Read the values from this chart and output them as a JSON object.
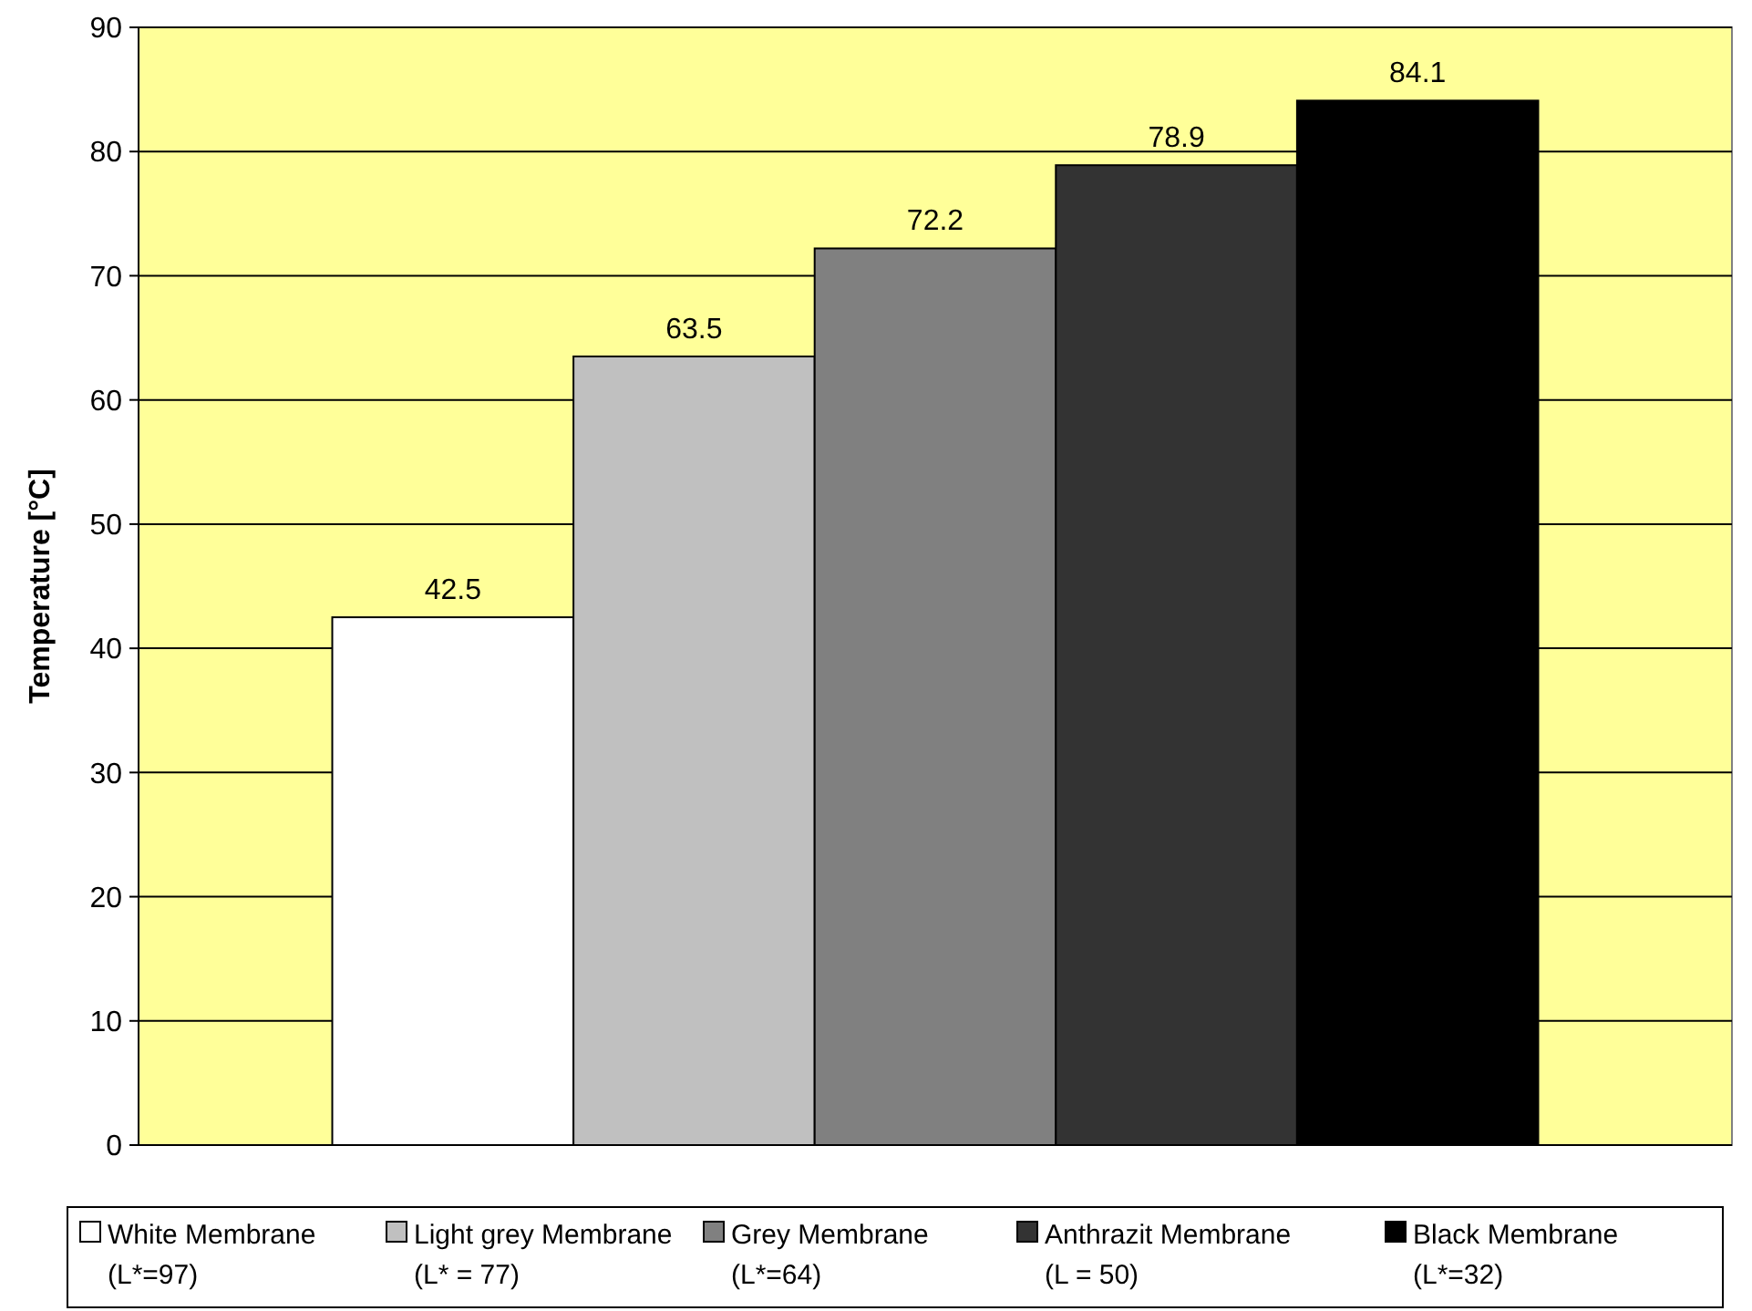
{
  "chart_data": {
    "type": "bar",
    "ylabel": "Temperature [°C]",
    "categories": [
      null
    ],
    "series": [
      {
        "name": "White Membrane\n(L*=97)",
        "color": "#ffffff",
        "values": [
          42.5
        ]
      },
      {
        "name": "Light grey Membrane\n(L* = 77)",
        "color": "#c0c0c0",
        "values": [
          63.5
        ]
      },
      {
        "name": "Grey Membrane\n(L*=64)",
        "color": "#808080",
        "values": [
          72.2
        ]
      },
      {
        "name": "Anthrazit Membrane\n(L = 50)",
        "color": "#333333",
        "values": [
          78.9
        ]
      },
      {
        "name": "Black Membrane\n(L*=32)",
        "color": "#000000",
        "values": [
          84.1
        ]
      }
    ],
    "ylim": [
      0,
      90
    ],
    "yticks": [
      0,
      10,
      20,
      30,
      40,
      50,
      60,
      70,
      80,
      90
    ],
    "grid": "y",
    "data_labels": true,
    "legend": "bottom"
  }
}
